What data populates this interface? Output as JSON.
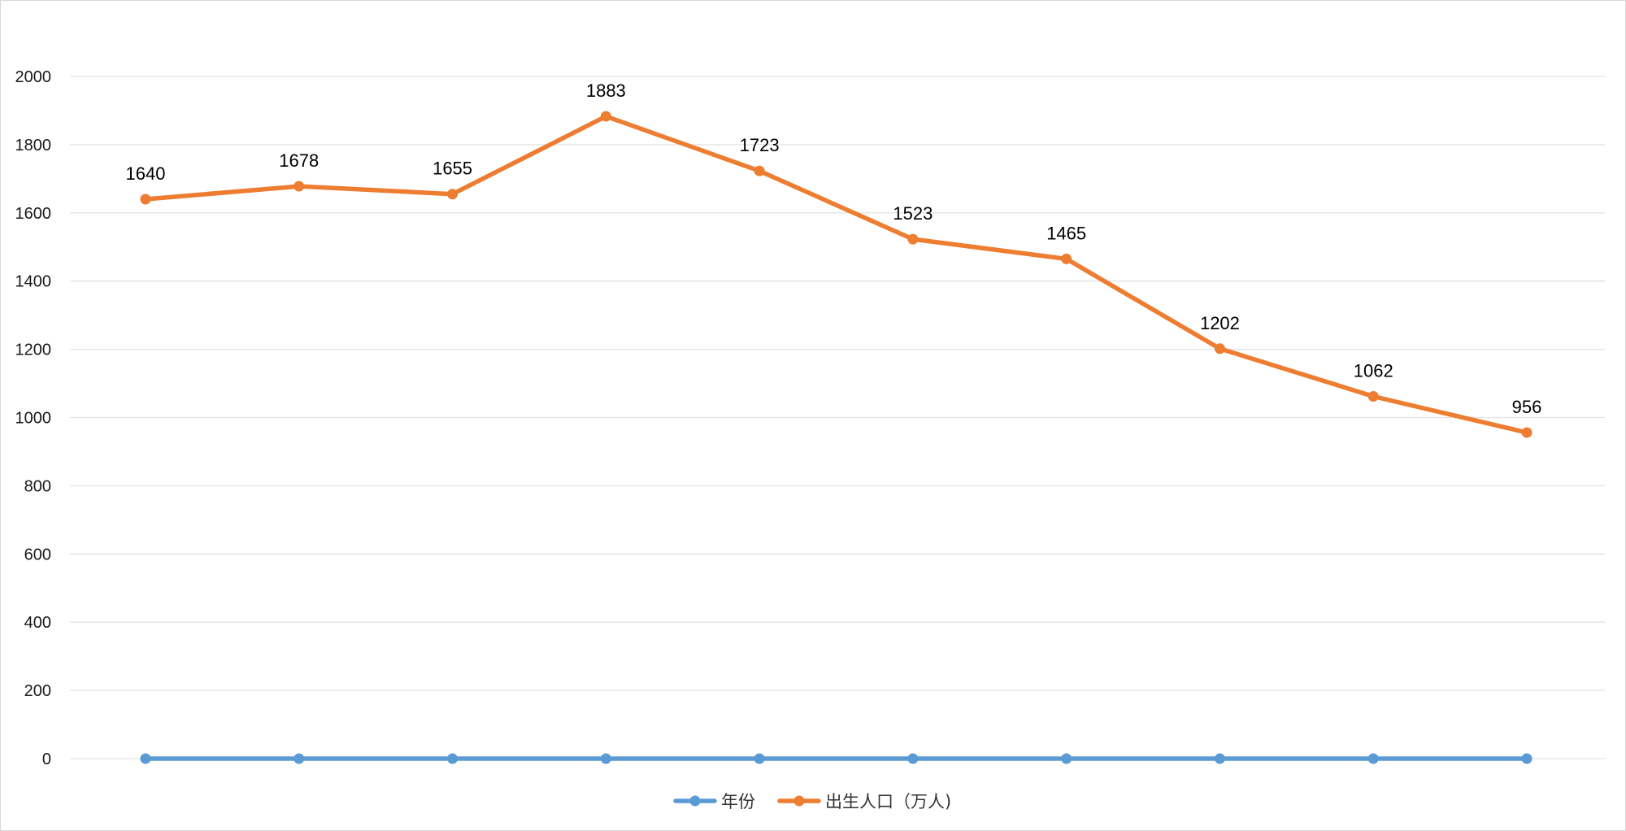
{
  "chart_data": {
    "type": "line",
    "categories": [
      "",
      "",
      "",
      "",
      "",
      "",
      "",
      "",
      "",
      ""
    ],
    "series": [
      {
        "name": "年份",
        "color": "#5B9BD5",
        "values": [
          0,
          0,
          0,
          0,
          0,
          0,
          0,
          0,
          0,
          0
        ]
      },
      {
        "name": "出生人口（万人)",
        "color": "#ED7D31",
        "values": [
          1640,
          1678,
          1655,
          1883,
          1723,
          1523,
          1465,
          1202,
          1062,
          956
        ],
        "labels": [
          "1640",
          "1678",
          "1655",
          "1883",
          "1723",
          "1523",
          "1465",
          "1202",
          "1062",
          "956"
        ]
      }
    ],
    "ylim": [
      0,
      2000
    ],
    "yticks": [
      0,
      200,
      400,
      600,
      800,
      1000,
      1200,
      1400,
      1600,
      1800,
      2000
    ],
    "ytick_labels": [
      "0",
      "200",
      "400",
      "600",
      "800",
      "1000",
      "1200",
      "1400",
      "1600",
      "1800",
      "2000"
    ],
    "title": "",
    "xlabel": "",
    "ylabel": "",
    "grid": true,
    "legend_position": "bottom"
  }
}
